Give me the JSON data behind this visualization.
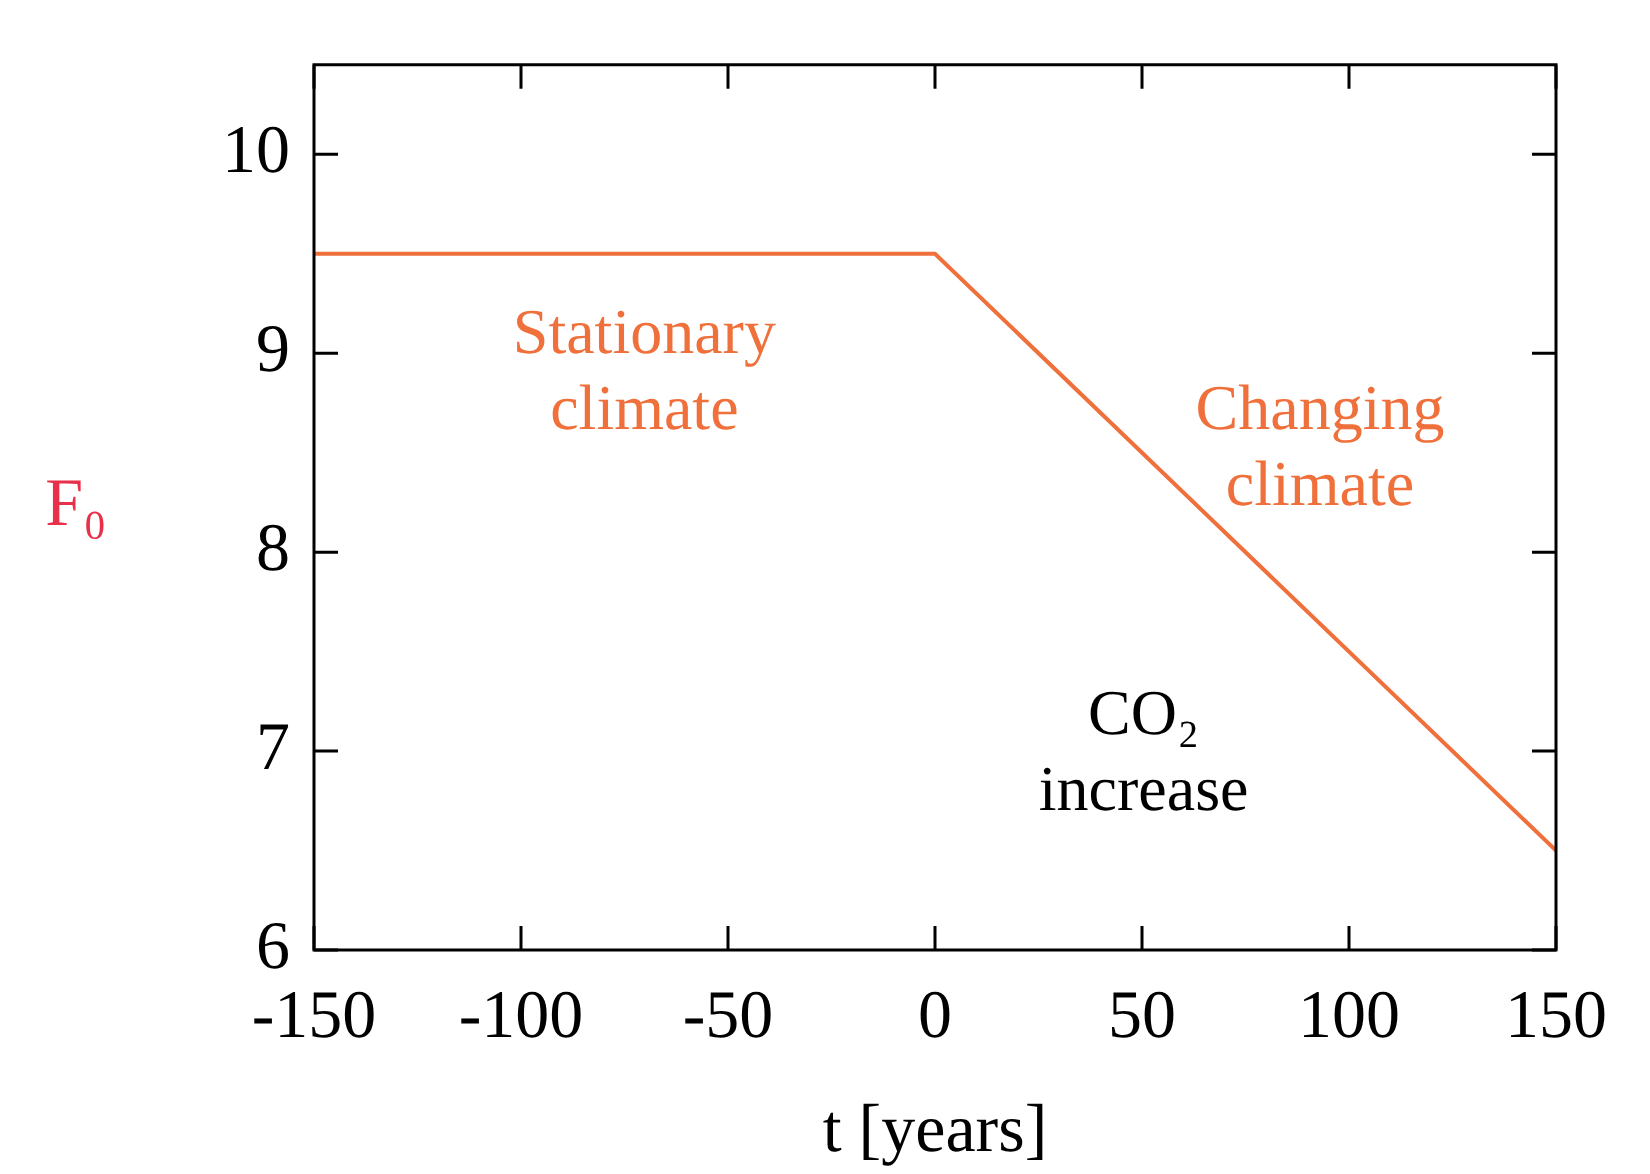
{
  "chart_data": {
    "type": "line",
    "xlabel": "t [years]",
    "ylabel": "F₀",
    "x": [
      -150,
      0,
      150
    ],
    "series": [
      {
        "color": "#f0703c",
        "values": [
          9.5,
          9.5,
          6.5
        ]
      }
    ],
    "xlim": [
      -150,
      150
    ],
    "xticks": [
      -150,
      -100,
      -50,
      0,
      50,
      100,
      150
    ],
    "ylim": [
      6,
      10.45
    ],
    "yticks": [
      6,
      7,
      8,
      9,
      10
    ],
    "grid": false,
    "legend": false,
    "marker": "none",
    "line_style": "solid",
    "annotations": [
      "Stationary\nclimate",
      "Changing\nclimate",
      "CO₂\nincrease"
    ]
  }
}
